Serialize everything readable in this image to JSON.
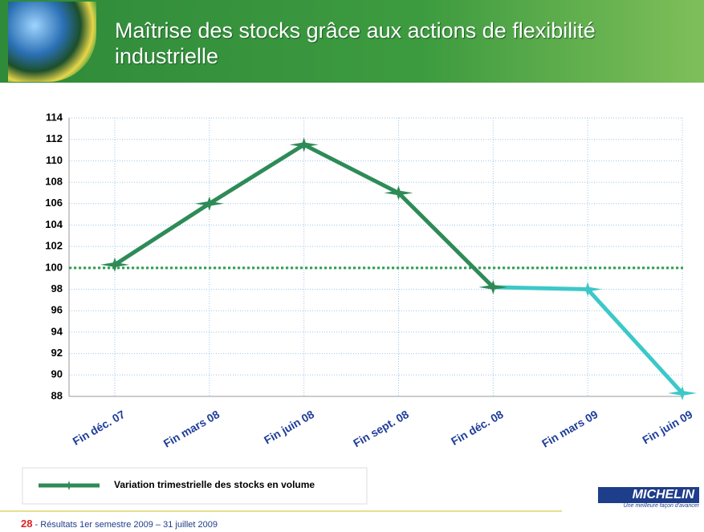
{
  "header": {
    "title": "Maîtrise des stocks grâce aux actions de flexibilité industrielle"
  },
  "chart_data": {
    "type": "line",
    "categories": [
      "Fin déc. 07",
      "Fin mars 08",
      "Fin juin 08",
      "Fin sept. 08",
      "Fin déc. 08",
      "Fin mars 09",
      "Fin juin 09"
    ],
    "series": [
      {
        "name": "Variation trimestrielle des stocks en volume",
        "color": "#2e8b57",
        "values": [
          100.3,
          106,
          111.5,
          107,
          98.2,
          98,
          88.3
        ]
      }
    ],
    "segment_colors": [
      "#2e8b57",
      "#2e8b57",
      "#2e8b57",
      "#2e8b57",
      "#3cc8c8",
      "#3cc8c8"
    ],
    "reference_line": {
      "value": 100,
      "color": "#2e9e4a"
    },
    "ylim": [
      88,
      114
    ],
    "yticks": [
      88,
      90,
      92,
      94,
      96,
      98,
      100,
      102,
      104,
      106,
      108,
      110,
      112,
      114
    ],
    "grid": true
  },
  "footer": {
    "page": "28",
    "text": "- Résultats 1er semestre 2009 – 31 juillet 2009",
    "brand": "MICHELIN",
    "tagline": "Une meilleure façon d'avancer"
  }
}
